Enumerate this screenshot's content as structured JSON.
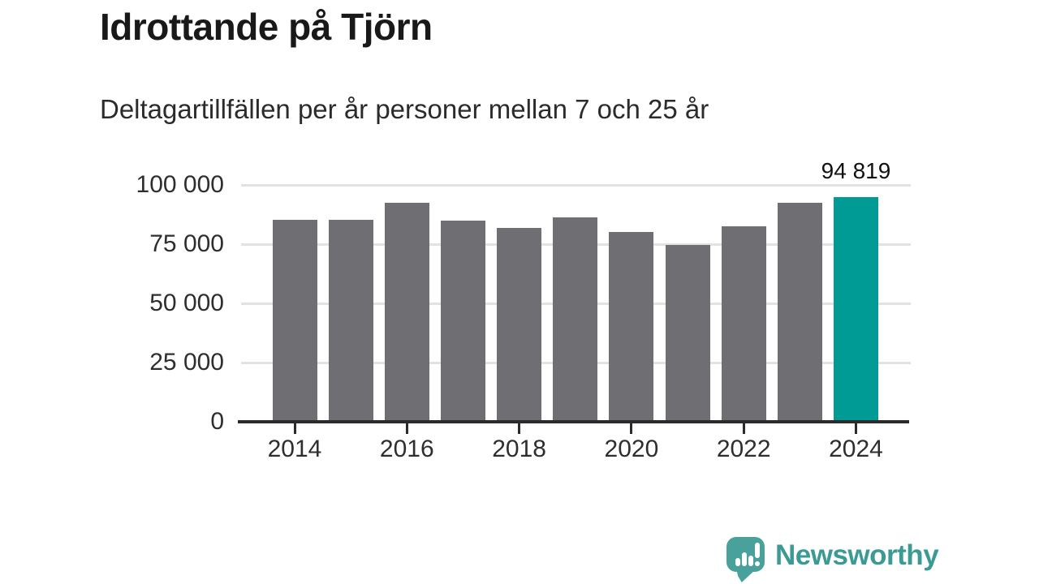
{
  "header": {
    "title": "Idrottande på Tjörn",
    "subtitle": "Deltagartillfällen per år personer mellan 7 och 25 år"
  },
  "chart_data": {
    "type": "bar",
    "title": "Idrottande på Tjörn",
    "subtitle": "Deltagartillfällen per år personer mellan 7 och 25 år",
    "categories": [
      "2014",
      "2015",
      "2016",
      "2017",
      "2018",
      "2019",
      "2020",
      "2021",
      "2022",
      "2023",
      "2024"
    ],
    "values": [
      85300,
      85300,
      92500,
      84900,
      82000,
      86200,
      80200,
      74800,
      82400,
      92500,
      94819
    ],
    "highlight_category": "2024",
    "data_label": {
      "category": "2024",
      "text": "94 819",
      "value": 94819
    },
    "y_ticks": [
      {
        "value": 0,
        "label": "0"
      },
      {
        "value": 25000,
        "label": "25 000"
      },
      {
        "value": 50000,
        "label": "50 000"
      },
      {
        "value": 75000,
        "label": "75 000"
      },
      {
        "value": 100000,
        "label": "100 000"
      }
    ],
    "x_tick_labels": [
      "2014",
      "2016",
      "2018",
      "2020",
      "2022",
      "2024"
    ],
    "ylim": [
      0,
      100000
    ],
    "grid": true,
    "legend": "none",
    "colors": {
      "bar": "#6f6e73",
      "highlight": "#009b94",
      "gridline": "#e2e2e2",
      "axis": "#2b2b2b",
      "text": "#2e2e2e"
    }
  },
  "footer": {
    "brand": "Newsworthy",
    "brand_text_color": "#3b9a93",
    "brand_icon_color": "#48a29b"
  }
}
